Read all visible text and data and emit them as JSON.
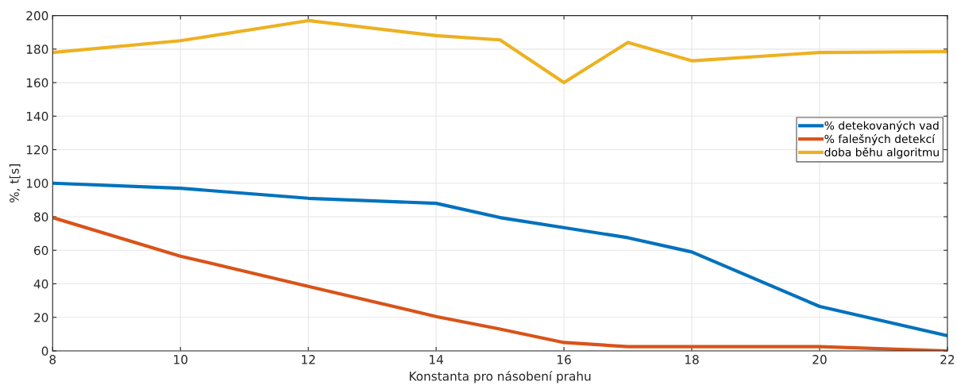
{
  "chart_data": {
    "type": "line",
    "xlabel": "Konstanta pro násobení prahu",
    "ylabel": "%, t[s]",
    "x": [
      8,
      10,
      12,
      14,
      15,
      16,
      17,
      18,
      20,
      22
    ],
    "series": [
      {
        "name": "% detekovaných vad",
        "color": "#0072bd",
        "values": [
          100,
          97,
          91,
          88,
          79.5,
          73.5,
          67.5,
          59,
          26.5,
          9
        ]
      },
      {
        "name": "% falešných detekcí",
        "color": "#d95319",
        "values": [
          79.5,
          56.5,
          38.5,
          20.5,
          13,
          5,
          2.5,
          2.5,
          2.5,
          0
        ]
      },
      {
        "name": "doba běhu algoritmu",
        "color": "#edb120",
        "values": [
          178,
          185,
          197,
          188,
          185.5,
          160,
          184,
          173,
          178,
          178.5
        ]
      }
    ],
    "xlim": [
      8,
      22
    ],
    "xticks": [
      8,
      10,
      12,
      14,
      16,
      18,
      20,
      22
    ],
    "ylim": [
      0,
      200
    ],
    "yticks": [
      0,
      20,
      40,
      60,
      80,
      100,
      120,
      140,
      160,
      180,
      200
    ],
    "grid": true,
    "legend": "right",
    "marker": "none",
    "line_style": "solid"
  }
}
